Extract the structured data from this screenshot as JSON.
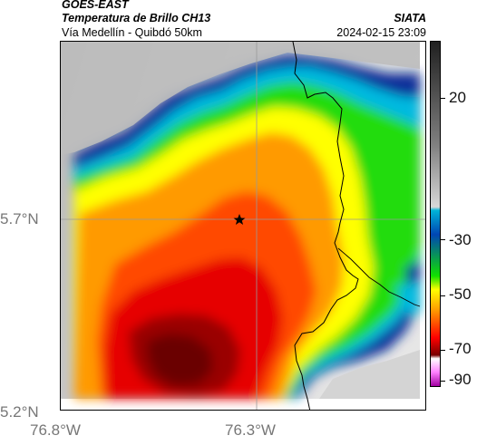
{
  "header": {
    "satellite": "GOES-EAST",
    "product": "Temperatura de Brillo CH13",
    "route": "Vía Medellín - Quibdó 50km",
    "organization": "SIATA",
    "timestamp": "2024-02-15 23:09"
  },
  "map": {
    "lat_ticks": [
      "5.7°N",
      "5.2°N"
    ],
    "lon_ticks": [
      "76.8°W",
      "76.3°W"
    ],
    "gridlines": true,
    "marker_icon": "star-icon"
  },
  "colorbar": {
    "tick_labels": [
      "20",
      "-30",
      "-50",
      "-70",
      "-90"
    ],
    "colors": [
      "#202020",
      "#808080",
      "#d8d8d8",
      "#00b4d8",
      "#0046b4",
      "#10e000",
      "#ffff00",
      "#ff9a00",
      "#ff0000",
      "#7a0000",
      "#ffffff",
      "#ff80ff",
      "#a000a0"
    ]
  }
}
